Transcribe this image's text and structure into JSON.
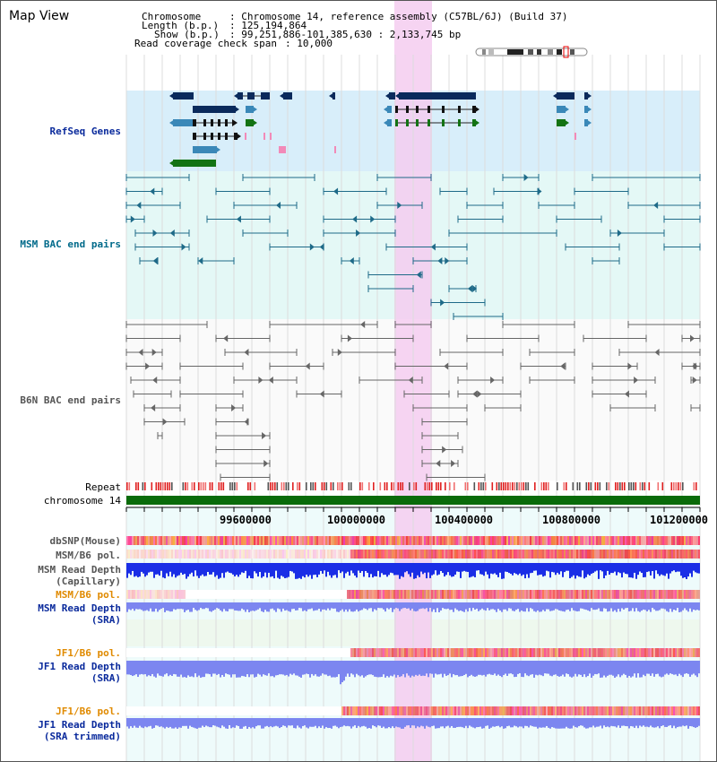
{
  "window": {
    "title": "Map View"
  },
  "header": {
    "chromosome_label": "Chromosome",
    "chromosome_value": ": Chromosome 14, reference assembly (C57BL/6J) (Build 37)",
    "length_label": "Length (b.p.)",
    "length_value": ": 125,194,864",
    "show_label": "Show (b.p.)",
    "show_value": ": 99,251,886-101,385,630 : 2,133,745 bp",
    "coverage_label": "Read coverage check span",
    "coverage_value": ": 10,000"
  },
  "tracks": {
    "refseq": "RefSeq Genes",
    "msm_bac": "MSM BAC end pairs",
    "b6n_bac": "B6N BAC end pairs",
    "repeat": "Repeat",
    "chromosome": "chromosome 14",
    "dbsnp": "dbSNP(Mouse)",
    "msm_b6_pol_1": "MSM/B6 pol.",
    "msm_rd_cap_1": "MSM Read Depth",
    "msm_rd_cap_2": "(Capillary)",
    "msm_b6_pol_2": "MSM/B6 pol.",
    "msm_rd_sra_1": "MSM Read Depth",
    "msm_rd_sra_2": "(SRA)",
    "jf1_b6_pol_1": "JF1/B6 pol.",
    "jf1_rd_sra_1": "JF1 Read Depth",
    "jf1_rd_sra_2": "(SRA)",
    "jf1_b6_pol_2": "JF1/B6 pol.",
    "jf1_rd_trim_1": "JF1 Read Depth",
    "jf1_rd_trim_2": "(SRA trimmed)"
  },
  "axis": {
    "ticks": [
      "99600000",
      "100000000",
      "100400000",
      "100800000",
      "101200000"
    ]
  },
  "colors": {
    "refseq_bg": "#d8eefa",
    "bac_bg": "#e4f8f6",
    "highlight": "#f5cdf0",
    "gene_dark": "#0a2a5c",
    "gene_mid": "#3a88b8",
    "gene_green": "#137313",
    "bac_teal": "#1e6a88",
    "bac_gray": "#666666",
    "chrom_green": "#0a6b0a",
    "depth_blue": "#1a2ee6",
    "depth_light": "#7c86f0"
  },
  "icons": [
    "ideogram-icon",
    "bac-arrow-icon",
    "gene-arrow-icon"
  ]
}
